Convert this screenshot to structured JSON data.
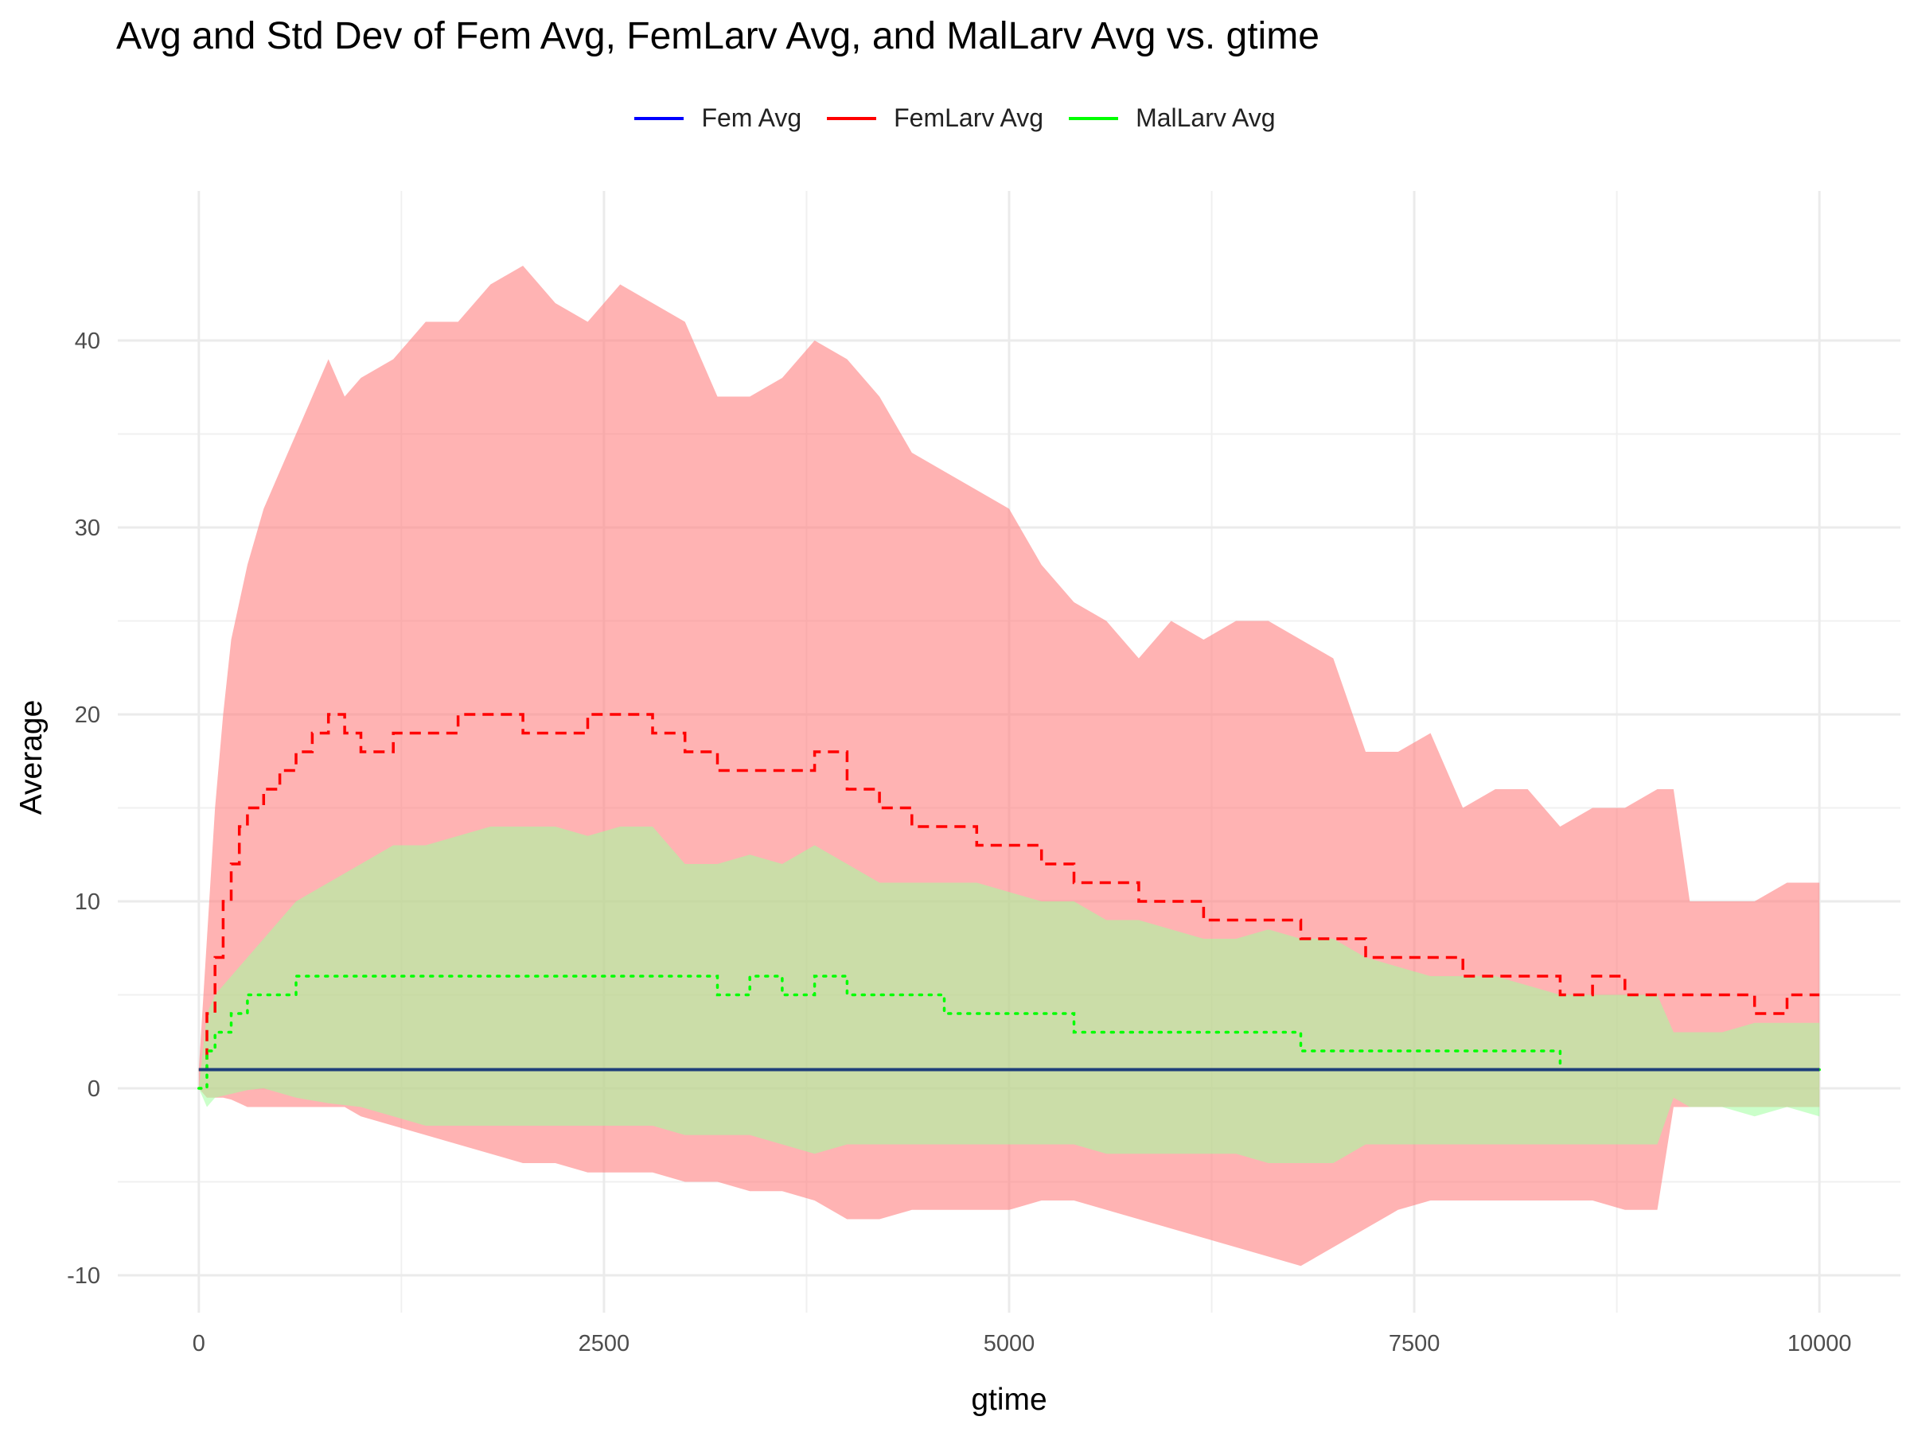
{
  "chart_data": {
    "type": "line",
    "title": "Avg and Std Dev of Fem Avg, FemLarv Avg, and MalLarv Avg vs. gtime",
    "xlabel": "gtime",
    "ylabel": "Average",
    "xlim": [
      -500,
      10500
    ],
    "ylim": [
      -12,
      48
    ],
    "x_ticks": [
      0,
      2500,
      5000,
      7500,
      10000
    ],
    "y_ticks": [
      -10,
      0,
      10,
      20,
      30,
      40
    ],
    "grid": true,
    "legend_position": "top",
    "legend": [
      {
        "name": "Fem Avg",
        "color": "#0000ff"
      },
      {
        "name": "FemLarv Avg",
        "color": "#ff0000"
      },
      {
        "name": "MalLarv Avg",
        "color": "#00ff00"
      }
    ],
    "series": [
      {
        "name": "Fem Avg",
        "color": "#0000ff",
        "linestyle": "solid",
        "x": [
          0,
          10000
        ],
        "y": [
          1,
          1
        ],
        "band_lower": [
          1,
          1
        ],
        "band_upper": [
          1,
          1
        ]
      },
      {
        "name": "FemLarv Avg",
        "color": "#ff0000",
        "linestyle": "dashed",
        "band_color": "#ff8080",
        "x": [
          0,
          50,
          100,
          150,
          200,
          250,
          300,
          400,
          500,
          600,
          700,
          800,
          900,
          1000,
          1200,
          1400,
          1600,
          1800,
          2000,
          2200,
          2400,
          2600,
          2800,
          3000,
          3200,
          3400,
          3600,
          3800,
          4000,
          4200,
          4400,
          4600,
          4800,
          5000,
          5200,
          5400,
          5600,
          5800,
          6000,
          6200,
          6400,
          6600,
          6800,
          7000,
          7200,
          7400,
          7600,
          7800,
          8000,
          8200,
          8400,
          8600,
          8800,
          9000,
          9100,
          9200,
          9400,
          9600,
          9800,
          10000
        ],
        "y": [
          1,
          4,
          7,
          10,
          12,
          14,
          15,
          16,
          17,
          18,
          19,
          20,
          19,
          18,
          19,
          19,
          20,
          20,
          19,
          19,
          20,
          20,
          19,
          18,
          17,
          17,
          17,
          18,
          16,
          15,
          14,
          14,
          13,
          13,
          12,
          11,
          11,
          10,
          10,
          9,
          9,
          9,
          8,
          8,
          7,
          7,
          7,
          6,
          6,
          6,
          5,
          6,
          5,
          5,
          5,
          5,
          5,
          4,
          5,
          5
        ],
        "band_lower": [
          0,
          -0.5,
          -0.5,
          -0.5,
          -0.6,
          -0.8,
          -1,
          -1,
          -1,
          -1,
          -1,
          -1,
          -1,
          -1.5,
          -2,
          -2.5,
          -3,
          -3.5,
          -4,
          -4,
          -4.5,
          -4.5,
          -4.5,
          -5,
          -5,
          -5.5,
          -5.5,
          -6,
          -7,
          -7,
          -6.5,
          -6.5,
          -6.5,
          -6.5,
          -6,
          -6,
          -6.5,
          -7,
          -7.5,
          -8,
          -8.5,
          -9,
          -9.5,
          -8.5,
          -7.5,
          -6.5,
          -6,
          -6,
          -6,
          -6,
          -6,
          -6,
          -6.5,
          -6.5,
          -1,
          -1,
          -1,
          -1,
          -1,
          -1
        ],
        "band_upper": [
          1,
          8,
          15,
          20,
          24,
          26,
          28,
          31,
          33,
          35,
          37,
          39,
          37,
          38,
          39,
          41,
          41,
          43,
          44,
          42,
          41,
          43,
          42,
          41,
          37,
          37,
          38,
          40,
          39,
          37,
          34,
          33,
          32,
          31,
          28,
          26,
          25,
          23,
          25,
          24,
          25,
          25,
          24,
          23,
          18,
          18,
          19,
          15,
          16,
          16,
          14,
          15,
          15,
          16,
          16,
          10,
          10,
          10,
          11,
          11
        ]
      },
      {
        "name": "MalLarv Avg",
        "color": "#00ff00",
        "linestyle": "dotted",
        "band_color": "#a0ff9e",
        "x": [
          0,
          50,
          100,
          200,
          300,
          400,
          600,
          800,
          1000,
          1200,
          1400,
          1600,
          1800,
          2000,
          2200,
          2400,
          2600,
          2800,
          3000,
          3200,
          3400,
          3600,
          3800,
          4000,
          4200,
          4400,
          4600,
          4800,
          5000,
          5200,
          5400,
          5600,
          5800,
          6000,
          6200,
          6400,
          6600,
          6800,
          7000,
          7200,
          7400,
          7600,
          7800,
          8000,
          8200,
          8400,
          8600,
          8800,
          9000,
          9100,
          9200,
          9400,
          9600,
          9800,
          10000
        ],
        "y": [
          0,
          2,
          3,
          4,
          5,
          5,
          6,
          6,
          6,
          6,
          6,
          6,
          6,
          6,
          6,
          6,
          6,
          6,
          6,
          5,
          6,
          5,
          6,
          5,
          5,
          5,
          4,
          4,
          4,
          4,
          3,
          3,
          3,
          3,
          3,
          3,
          3,
          2,
          2,
          2,
          2,
          2,
          2,
          2,
          2,
          1,
          1,
          1,
          1,
          1,
          1,
          1,
          1,
          1,
          1
        ],
        "band_lower": [
          0,
          -1,
          -0.5,
          -0.3,
          -0.1,
          0,
          -0.5,
          -0.8,
          -1,
          -1.5,
          -2,
          -2,
          -2,
          -2,
          -2,
          -2,
          -2,
          -2,
          -2.5,
          -2.5,
          -2.5,
          -3,
          -3.5,
          -3,
          -3,
          -3,
          -3,
          -3,
          -3,
          -3,
          -3,
          -3.5,
          -3.5,
          -3.5,
          -3.5,
          -3.5,
          -4,
          -4,
          -4,
          -3,
          -3,
          -3,
          -3,
          -3,
          -3,
          -3,
          -3,
          -3,
          -3,
          -0.5,
          -1,
          -1,
          -1.5,
          -1,
          -1.5
        ],
        "band_upper": [
          0,
          4,
          5,
          6,
          7,
          8,
          10,
          11,
          12,
          13,
          13,
          13.5,
          14,
          14,
          14,
          13.5,
          14,
          14,
          12,
          12,
          12.5,
          12,
          13,
          12,
          11,
          11,
          11,
          11,
          10.5,
          10,
          10,
          9,
          9,
          8.5,
          8,
          8,
          8.5,
          8,
          8,
          7,
          6.5,
          6,
          6,
          6,
          5.5,
          5,
          5,
          5,
          5,
          3,
          3,
          3,
          3.5,
          3.5,
          3.5
        ]
      }
    ]
  }
}
